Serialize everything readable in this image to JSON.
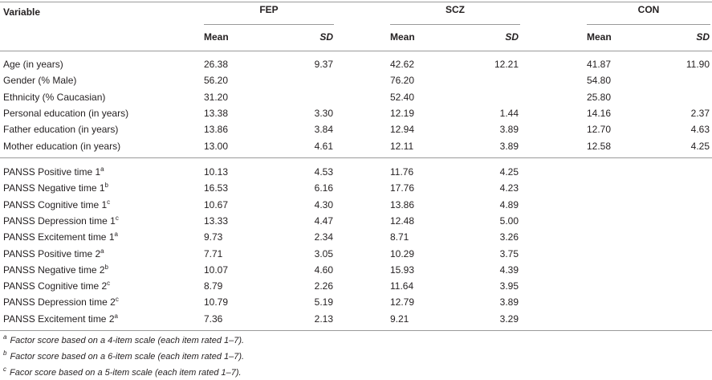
{
  "header": {
    "variable_label": "Variable",
    "groups": [
      "FEP",
      "SCZ",
      "CON"
    ],
    "mean_label": "Mean",
    "sd_label": "SD"
  },
  "demographics": [
    {
      "label": "Age (in years)",
      "sup": "",
      "vals": [
        "26.38",
        "9.37",
        "42.62",
        "12.21",
        "41.87",
        "11.90"
      ]
    },
    {
      "label": "Gender (% Male)",
      "sup": "",
      "vals": [
        "56.20",
        "",
        "76.20",
        "",
        "54.80",
        ""
      ]
    },
    {
      "label": "Ethnicity (% Caucasian)",
      "sup": "",
      "vals": [
        "31.20",
        "",
        "52.40",
        "",
        "25.80",
        ""
      ]
    },
    {
      "label": "Personal education (in years)",
      "sup": "",
      "vals": [
        "13.38",
        "3.30",
        "12.19",
        "1.44",
        "14.16",
        "2.37"
      ]
    },
    {
      "label": "Father education (in years)",
      "sup": "",
      "vals": [
        "13.86",
        "3.84",
        "12.94",
        "3.89",
        "12.70",
        "4.63"
      ]
    },
    {
      "label": "Mother education (in years)",
      "sup": "",
      "vals": [
        "13.00",
        "4.61",
        "12.11",
        "3.89",
        "12.58",
        "4.25"
      ]
    }
  ],
  "panss": [
    {
      "label": "PANSS Positive time 1",
      "sup": "a",
      "vals": [
        "10.13",
        "4.53",
        "11.76",
        "4.25",
        "",
        ""
      ]
    },
    {
      "label": "PANSS Negative time 1",
      "sup": "b",
      "vals": [
        "16.53",
        "6.16",
        "17.76",
        "4.23",
        "",
        ""
      ]
    },
    {
      "label": "PANSS Cognitive time 1",
      "sup": "c",
      "vals": [
        "10.67",
        "4.30",
        "13.86",
        "4.89",
        "",
        ""
      ]
    },
    {
      "label": "PANSS Depression time 1",
      "sup": "c",
      "vals": [
        "13.33",
        "4.47",
        "12.48",
        "5.00",
        "",
        ""
      ]
    },
    {
      "label": "PANSS Excitement time 1",
      "sup": "a",
      "vals": [
        "9.73",
        "2.34",
        "8.71",
        "3.26",
        "",
        ""
      ]
    },
    {
      "label": "PANSS Positive time 2",
      "sup": "a",
      "vals": [
        "7.71",
        "3.05",
        "10.29",
        "3.75",
        "",
        ""
      ]
    },
    {
      "label": "PANSS Negative time 2",
      "sup": "b",
      "vals": [
        "10.07",
        "4.60",
        "15.93",
        "4.39",
        "",
        ""
      ]
    },
    {
      "label": "PANSS Cognitive time 2",
      "sup": "c",
      "vals": [
        "8.79",
        "2.26",
        "11.64",
        "3.95",
        "",
        ""
      ]
    },
    {
      "label": "PANSS Depression time 2",
      "sup": "c",
      "vals": [
        "10.79",
        "5.19",
        "12.79",
        "3.89",
        "",
        ""
      ]
    },
    {
      "label": "PANSS Excitement time 2",
      "sup": "a",
      "vals": [
        "7.36",
        "2.13",
        "9.21",
        "3.29",
        "",
        ""
      ]
    }
  ],
  "footnotes": [
    {
      "mark": "a",
      "text": "Factor score based on a 4-item scale (each item rated 1–7)."
    },
    {
      "mark": "b",
      "text": "Factor score based on a 6-item scale (each item rated 1–7)."
    },
    {
      "mark": "c",
      "text": "Facor score based on a 5-item scale (each item rated 1–7)."
    }
  ]
}
